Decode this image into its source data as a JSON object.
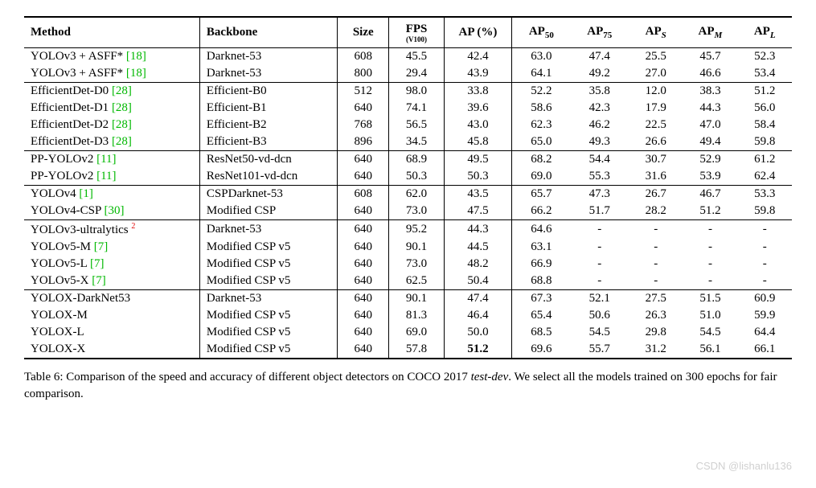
{
  "columns": [
    "Method",
    "Backbone",
    "Size",
    "FPS",
    "AP (%)",
    "AP",
    "AP",
    "AP",
    "AP",
    "AP"
  ],
  "col_sub": [
    "",
    "",
    "",
    "(V100)",
    "",
    "50",
    "75",
    "S",
    "M",
    "L"
  ],
  "groups": [
    {
      "rows": [
        {
          "method": "YOLOv3 + ASFF*",
          "cite": "[18]",
          "backbone": "Darknet-53",
          "size": "608",
          "fps": "45.5",
          "ap": "42.4",
          "ap50": "63.0",
          "ap75": "47.4",
          "aps": "25.5",
          "apm": "45.7",
          "apl": "52.3"
        },
        {
          "method": "YOLOv3 + ASFF*",
          "cite": "[18]",
          "backbone": "Darknet-53",
          "size": "800",
          "fps": "29.4",
          "ap": "43.9",
          "ap50": "64.1",
          "ap75": "49.2",
          "aps": "27.0",
          "apm": "46.6",
          "apl": "53.4"
        }
      ]
    },
    {
      "rows": [
        {
          "method": "EfficientDet-D0",
          "cite": "[28]",
          "backbone": "Efficient-B0",
          "size": "512",
          "fps": "98.0",
          "ap": "33.8",
          "ap50": "52.2",
          "ap75": "35.8",
          "aps": "12.0",
          "apm": "38.3",
          "apl": "51.2"
        },
        {
          "method": "EfficientDet-D1",
          "cite": "[28]",
          "backbone": "Efficient-B1",
          "size": "640",
          "fps": "74.1",
          "ap": "39.6",
          "ap50": "58.6",
          "ap75": "42.3",
          "aps": "17.9",
          "apm": "44.3",
          "apl": "56.0"
        },
        {
          "method": "EfficientDet-D2",
          "cite": "[28]",
          "backbone": "Efficient-B2",
          "size": "768",
          "fps": "56.5",
          "ap": "43.0",
          "ap50": "62.3",
          "ap75": "46.2",
          "aps": "22.5",
          "apm": "47.0",
          "apl": "58.4"
        },
        {
          "method": "EfficientDet-D3",
          "cite": "[28]",
          "backbone": "Efficient-B3",
          "size": "896",
          "fps": "34.5",
          "ap": "45.8",
          "ap50": "65.0",
          "ap75": "49.3",
          "aps": "26.6",
          "apm": "49.4",
          "apl": "59.8"
        }
      ]
    },
    {
      "rows": [
        {
          "method": "PP-YOLOv2",
          "cite": "[11]",
          "backbone": "ResNet50-vd-dcn",
          "size": "640",
          "fps": "68.9",
          "ap": "49.5",
          "ap50": "68.2",
          "ap75": "54.4",
          "aps": "30.7",
          "apm": "52.9",
          "apl": "61.2"
        },
        {
          "method": "PP-YOLOv2",
          "cite": "[11]",
          "backbone": "ResNet101-vd-dcn",
          "size": "640",
          "fps": "50.3",
          "ap": "50.3",
          "ap50": "69.0",
          "ap75": "55.3",
          "aps": "31.6",
          "apm": "53.9",
          "apl": "62.4"
        }
      ]
    },
    {
      "rows": [
        {
          "method": "YOLOv4",
          "cite": "[1]",
          "backbone": "CSPDarknet-53",
          "size": "608",
          "fps": "62.0",
          "ap": "43.5",
          "ap50": "65.7",
          "ap75": "47.3",
          "aps": "26.7",
          "apm": "46.7",
          "apl": "53.3"
        },
        {
          "method": "YOLOv4-CSP",
          "cite": "[30]",
          "backbone": "Modified CSP",
          "size": "640",
          "fps": "73.0",
          "ap": "47.5",
          "ap50": "66.2",
          "ap75": "51.7",
          "aps": "28.2",
          "apm": "51.2",
          "apl": "59.8"
        }
      ]
    },
    {
      "rows": [
        {
          "method": "YOLOv3-ultralytics",
          "footnote": "2",
          "backbone": "Darknet-53",
          "size": "640",
          "fps": "95.2",
          "ap": "44.3",
          "ap50": "64.6",
          "ap75": "-",
          "aps": "-",
          "apm": "-",
          "apl": "-"
        },
        {
          "method": "YOLOv5-M",
          "cite": "[7]",
          "backbone": "Modified CSP v5",
          "size": "640",
          "fps": "90.1",
          "ap": "44.5",
          "ap50": "63.1",
          "ap75": "-",
          "aps": "-",
          "apm": "-",
          "apl": "-"
        },
        {
          "method": "YOLOv5-L",
          "cite": "[7]",
          "backbone": "Modified CSP v5",
          "size": "640",
          "fps": "73.0",
          "ap": "48.2",
          "ap50": "66.9",
          "ap75": "-",
          "aps": "-",
          "apm": "-",
          "apl": "-"
        },
        {
          "method": "YOLOv5-X",
          "cite": "[7]",
          "backbone": "Modified CSP v5",
          "size": "640",
          "fps": "62.5",
          "ap": "50.4",
          "ap50": "68.8",
          "ap75": "-",
          "aps": "-",
          "apm": "-",
          "apl": "-"
        }
      ]
    },
    {
      "rows": [
        {
          "method": "YOLOX-DarkNet53",
          "backbone": "Darknet-53",
          "size": "640",
          "fps": "90.1",
          "ap": "47.4",
          "ap50": "67.3",
          "ap75": "52.1",
          "aps": "27.5",
          "apm": "51.5",
          "apl": "60.9"
        },
        {
          "method": "YOLOX-M",
          "backbone": "Modified CSP v5",
          "size": "640",
          "fps": "81.3",
          "ap": "46.4",
          "ap50": "65.4",
          "ap75": "50.6",
          "aps": "26.3",
          "apm": "51.0",
          "apl": "59.9"
        },
        {
          "method": "YOLOX-L",
          "backbone": "Modified CSP v5",
          "size": "640",
          "fps": "69.0",
          "ap": "50.0",
          "ap50": "68.5",
          "ap75": "54.5",
          "aps": "29.8",
          "apm": "54.5",
          "apl": "64.4"
        },
        {
          "method": "YOLOX-X",
          "backbone": "Modified CSP v5",
          "size": "640",
          "fps": "57.8",
          "ap": "51.2",
          "ap_bold": true,
          "ap50": "69.6",
          "ap75": "55.7",
          "aps": "31.2",
          "apm": "56.1",
          "apl": "66.1"
        }
      ]
    }
  ],
  "caption_prefix": "Table 6: Comparison of the speed and accuracy of different object detectors on COCO 2017 ",
  "caption_italic": "test-dev",
  "caption_suffix": ". We select all the models trained on 300 epochs for fair comparison.",
  "watermark": "CSDN @lishanlu136"
}
